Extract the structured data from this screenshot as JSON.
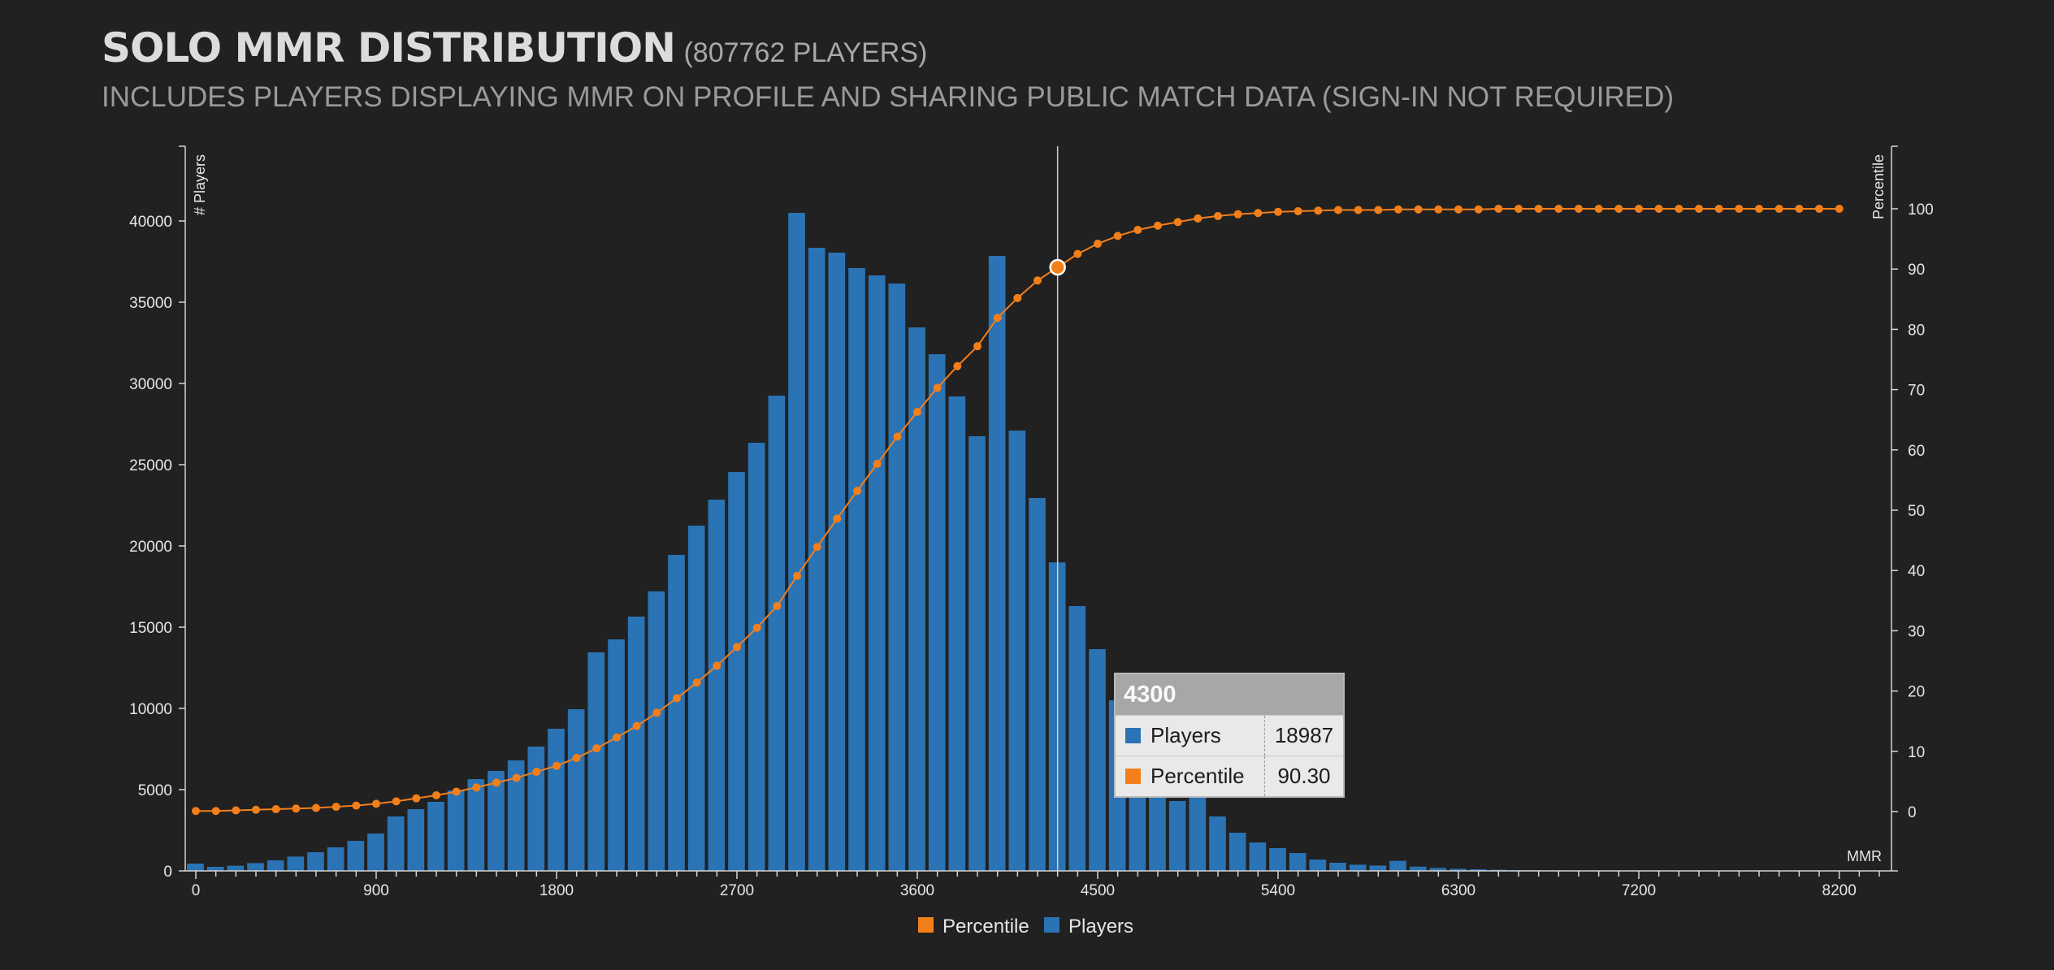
{
  "header": {
    "title": "SOLO MMR DISTRIBUTION",
    "count": "(807762 PLAYERS)",
    "subtitle": "INCLUDES PLAYERS DISPLAYING MMR ON PROFILE AND SHARING PUBLIC MATCH DATA (SIGN-IN NOT REQUIRED)"
  },
  "colors": {
    "players": "#2a73b5",
    "percentile": "#f37f1b",
    "background": "#212121"
  },
  "chart_data": {
    "type": "bar",
    "x_label": "MMR",
    "y_label": "# Players",
    "y2_label": "Percentile",
    "xlim": [
      0,
      8500
    ],
    "ylim": [
      0,
      44000
    ],
    "y2lim": [
      -10,
      110
    ],
    "x_ticks": [
      0,
      900,
      1800,
      2700,
      3600,
      4500,
      5400,
      6300,
      7200,
      8200
    ],
    "y_ticks": [
      0,
      5000,
      10000,
      15000,
      20000,
      25000,
      30000,
      35000,
      40000
    ],
    "y2_ticks": [
      0,
      10,
      20,
      30,
      40,
      50,
      60,
      70,
      80,
      90,
      100
    ],
    "bin_width": 100,
    "x": [
      0,
      100,
      200,
      300,
      400,
      500,
      600,
      700,
      800,
      900,
      1000,
      1100,
      1200,
      1300,
      1400,
      1500,
      1600,
      1700,
      1800,
      1900,
      2000,
      2100,
      2200,
      2300,
      2400,
      2500,
      2600,
      2700,
      2800,
      2900,
      3000,
      3100,
      3200,
      3300,
      3400,
      3500,
      3600,
      3700,
      3800,
      3900,
      4000,
      4100,
      4200,
      4300,
      4400,
      4500,
      4600,
      4700,
      4800,
      4900,
      5000,
      5100,
      5200,
      5300,
      5400,
      5500,
      5600,
      5700,
      5800,
      5900,
      6000,
      6100,
      6200,
      6300,
      6400,
      6500,
      6600,
      6700,
      6800,
      6900,
      7000,
      7100,
      7200,
      7300,
      7400,
      7500,
      7600,
      7700,
      7800,
      7900,
      8000,
      8100,
      8200
    ],
    "series": [
      {
        "name": "Players",
        "values": [
          450,
          250,
          320,
          480,
          650,
          880,
          1150,
          1450,
          1850,
          2300,
          3350,
          3800,
          4250,
          4950,
          5650,
          6150,
          6800,
          7650,
          8750,
          9950,
          13450,
          14250,
          15650,
          17200,
          19450,
          21250,
          22850,
          24550,
          26350,
          29250,
          40500,
          38350,
          38050,
          37100,
          36650,
          36150,
          33450,
          31800,
          29200,
          26750,
          37850,
          27100,
          22950,
          18987,
          16300,
          13650,
          10500,
          8000,
          5900,
          4300,
          5100,
          3350,
          2350,
          1750,
          1400,
          1100,
          700,
          500,
          380,
          330,
          620,
          260,
          180,
          130,
          100,
          70,
          50,
          40,
          30,
          25,
          20,
          15,
          12,
          10,
          8,
          6,
          5,
          4,
          3,
          3,
          2,
          2,
          2
        ]
      },
      {
        "name": "Percentile",
        "values": [
          0.1,
          0.1,
          0.2,
          0.3,
          0.4,
          0.5,
          0.6,
          0.8,
          1.0,
          1.3,
          1.7,
          2.2,
          2.7,
          3.3,
          4.0,
          4.8,
          5.6,
          6.6,
          7.6,
          8.9,
          10.5,
          12.3,
          14.2,
          16.4,
          18.8,
          21.4,
          24.2,
          27.3,
          30.5,
          34.1,
          39.1,
          43.9,
          48.6,
          53.2,
          57.7,
          62.2,
          66.3,
          70.3,
          73.9,
          77.2,
          81.9,
          85.2,
          88.1,
          90.3,
          92.5,
          94.2,
          95.5,
          96.5,
          97.2,
          97.8,
          98.4,
          98.8,
          99.1,
          99.3,
          99.5,
          99.6,
          99.7,
          99.8,
          99.8,
          99.8,
          99.9,
          99.9,
          99.9,
          99.9,
          99.9,
          100,
          100,
          100,
          100,
          100,
          100,
          100,
          100,
          100,
          100,
          100,
          100,
          100,
          100,
          100,
          100,
          100,
          100
        ]
      }
    ],
    "legend": [
      "Percentile",
      "Players"
    ],
    "highlight": {
      "x": 4300,
      "players": 18987,
      "percentile": 90.3
    }
  },
  "tooltip": {
    "title": "4300",
    "rows": [
      {
        "label": "Players",
        "value": "18987"
      },
      {
        "label": "Percentile",
        "value": "90.30"
      }
    ]
  }
}
